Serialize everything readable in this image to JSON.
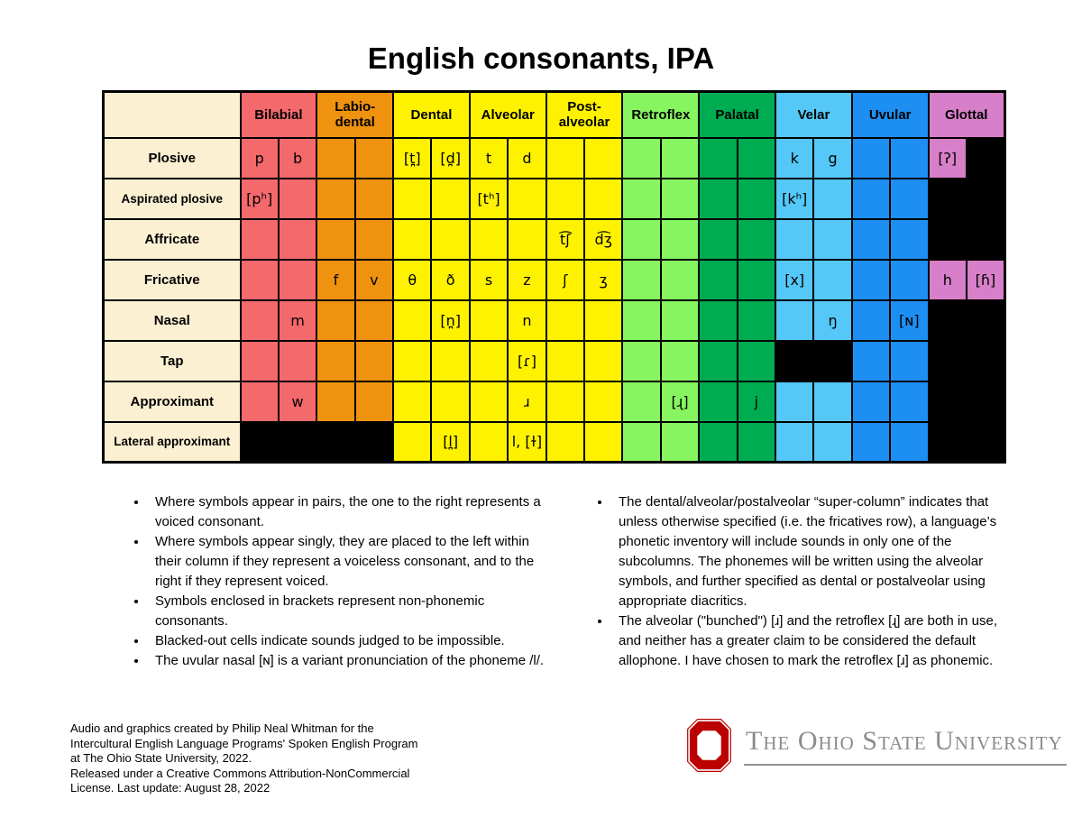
{
  "title": "English consonants, IPA",
  "table": {
    "label_col_color": "#FCF0D2",
    "black_cell_color": "#000000",
    "columns": [
      {
        "label": "Bilabial",
        "key": "bilabial",
        "color": "#F4696B"
      },
      {
        "label": "Labio-\ndental",
        "key": "labiodental",
        "color": "#EE9210"
      },
      {
        "label": "Dental",
        "key": "dental",
        "color": "#FFF200"
      },
      {
        "label": "Alveolar",
        "key": "alveolar",
        "color": "#FFF200"
      },
      {
        "label": "Post-\nalveolar",
        "key": "postalveolar",
        "color": "#FFF200"
      },
      {
        "label": "Retroflex",
        "key": "retroflex",
        "color": "#86F55F"
      },
      {
        "label": "Palatal",
        "key": "palatal",
        "color": "#00AC51"
      },
      {
        "label": "Velar",
        "key": "velar",
        "color": "#55C8F7"
      },
      {
        "label": "Uvular",
        "key": "uvular",
        "color": "#1E8FF2"
      },
      {
        "label": "Glottal",
        "key": "glottal",
        "color": "#D87FC9"
      }
    ],
    "rows": [
      {
        "label": "Plosive",
        "syms": [
          "p",
          "b",
          "",
          "",
          "[t̪]",
          "[d̪]",
          "t",
          "d",
          "",
          "",
          "",
          "",
          "",
          "",
          "k",
          "g",
          "",
          "",
          "[ʔ]",
          ""
        ],
        "black": [
          19
        ]
      },
      {
        "label": "Aspirated plosive",
        "syms": [
          "[pʰ]",
          "",
          "",
          "",
          "",
          "",
          "[tʰ]",
          "",
          "",
          "",
          "",
          "",
          "",
          "",
          "[kʰ]",
          "",
          "",
          "",
          "",
          ""
        ],
        "black": [
          18,
          19
        ]
      },
      {
        "label": "Affricate",
        "syms": [
          "",
          "",
          "",
          "",
          "",
          "",
          "",
          "",
          "t͡ʃ",
          "d͡ʒ",
          "",
          "",
          "",
          "",
          "",
          "",
          "",
          "",
          "",
          ""
        ],
        "black": [
          18,
          19
        ]
      },
      {
        "label": "Fricative",
        "syms": [
          "",
          "",
          "f",
          "v",
          "θ",
          "ð",
          "s",
          "z",
          "ʃ",
          "ʒ",
          "",
          "",
          "",
          "",
          "[x]",
          "",
          "",
          "",
          "h",
          "[ɦ]"
        ],
        "black": []
      },
      {
        "label": "Nasal",
        "syms": [
          "",
          "m",
          "",
          "",
          "",
          "[n̪]",
          "",
          "n",
          "",
          "",
          "",
          "",
          "",
          "",
          "",
          "ŋ",
          "",
          "[ɴ]",
          "",
          ""
        ],
        "black": [
          18,
          19
        ]
      },
      {
        "label": "Tap",
        "syms": [
          "",
          "",
          "",
          "",
          "",
          "",
          "",
          "[ɾ]",
          "",
          "",
          "",
          "",
          "",
          "",
          "",
          "",
          "",
          "",
          "",
          ""
        ],
        "black": [
          14,
          15,
          18,
          19
        ]
      },
      {
        "label": "Approximant",
        "syms": [
          "",
          "w",
          "",
          "",
          "",
          "",
          "",
          "ɹ",
          "",
          "",
          "",
          "[ɻ]",
          "",
          "j",
          "",
          "",
          "",
          "",
          "",
          ""
        ],
        "black": [
          18,
          19
        ]
      },
      {
        "label": "Lateral approximant",
        "syms": [
          "",
          "",
          "",
          "",
          "",
          "[l̪]",
          "",
          "l, [ɫ]",
          "",
          "",
          "",
          "",
          "",
          "",
          "",
          "",
          "",
          "",
          "",
          ""
        ],
        "black": [
          0,
          1,
          2,
          3,
          18,
          19
        ]
      }
    ]
  },
  "notes_left": [
    "Where symbols appear in pairs, the one to the right represents a voiced consonant.",
    "Where symbols appear singly, they are placed to the left within their column if they represent a voiceless consonant, and to the right if they represent voiced.",
    "Symbols enclosed in brackets represent non-phonemic consonants.",
    "Blacked-out cells indicate sounds judged to be impossible.",
    "The uvular nasal [ɴ] is a variant pronunciation of the phoneme /l/."
  ],
  "notes_right": [
    "The dental/alveolar/postalveolar “super-column” indicates that unless otherwise specified (i.e. the fricatives row), a language’s phonetic inventory will include sounds in only one of the subcolumns. The phonemes will be written using the alveolar symbols, and further specified as dental or postalveolar using appropriate diacritics.",
    "The alveolar (\"bunched\") [ɹ] and the retroflex [ɻ] are both in use, and neither has a greater claim to be considered the default allophone. I have chosen to mark the retroflex [ɹ] as phonemic."
  ],
  "credits_lines": [
    "Audio and graphics created by Philip Neal Whitman for the",
    "Intercultural English Language Programs' Spoken English Program",
    "at The Ohio State University, 2022.",
    "Released under a Creative Commons Attribution-NonCommercial",
    "License. Last update: August 28, 2022"
  ],
  "logo": {
    "wordmark": "The Ohio State University",
    "o_color": "#BB0000",
    "text_color": "#8c8c8c"
  }
}
